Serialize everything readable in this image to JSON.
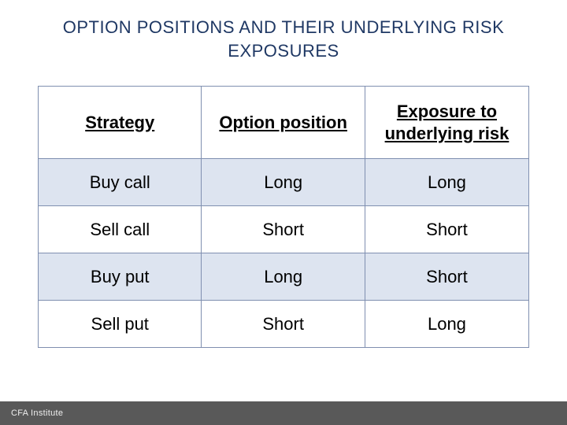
{
  "title": "OPTION POSITIONS AND THEIR UNDERLYING RISK EXPOSURES",
  "table": {
    "columns": [
      "Strategy",
      "Option position",
      "Exposure to underlying risk"
    ],
    "rows": [
      [
        "Buy call",
        "Long",
        "Long"
      ],
      [
        "Sell call",
        "Short",
        "Short"
      ],
      [
        "Buy put",
        "Long",
        "Short"
      ],
      [
        "Sell put",
        "Short",
        "Long"
      ]
    ],
    "header_bg": "#ffffff",
    "zebra_bg": "#dde4f0",
    "plain_bg": "#ffffff",
    "border_color": "#7f8fb0",
    "header_fontsize": 22,
    "cell_fontsize": 22,
    "text_color": "#000000",
    "title_color": "#1f3864",
    "col_widths": [
      "33.3%",
      "33.3%",
      "33.4%"
    ]
  },
  "footer": {
    "label": "CFA Institute",
    "bg": "#595959",
    "text_color": "#eeeeee"
  }
}
